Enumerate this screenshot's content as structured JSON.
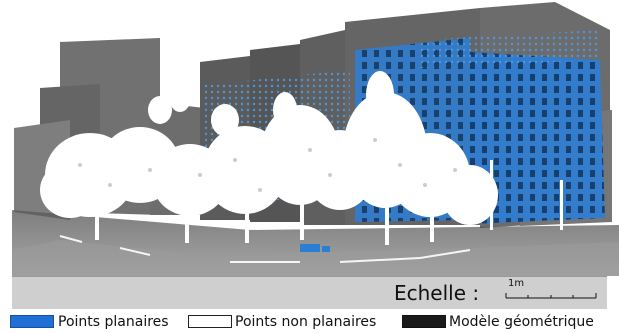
{
  "scene": {
    "colors": {
      "sky": "#ffffff",
      "ground": "#8a8a8a",
      "buildings_model": "#3a3a3a",
      "planar_points": "#2a7fd4",
      "non_planar_points": "#ffffff"
    }
  },
  "scale": {
    "label": "Echelle :",
    "unit": "1m"
  },
  "legend": {
    "items": [
      {
        "label": "Points planaires",
        "color": "#1f6fd6",
        "border": "#1a4f9a"
      },
      {
        "label": "Points non planaires",
        "color": "#ffffff",
        "border": "#222222"
      },
      {
        "label": "Modèle géométrique",
        "color": "#1a1a1a",
        "border": "#111111"
      }
    ]
  }
}
